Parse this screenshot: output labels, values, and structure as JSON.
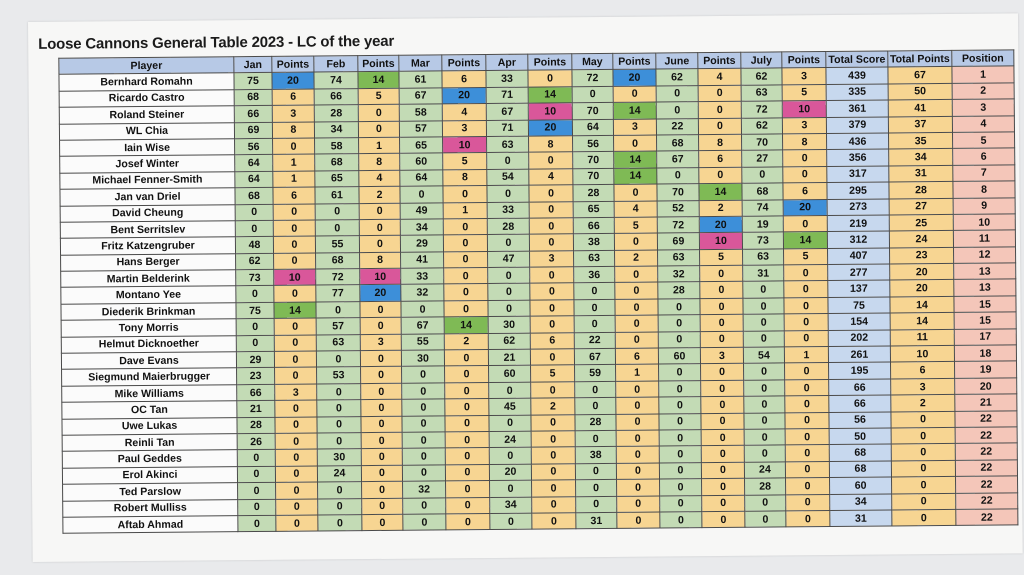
{
  "title": "Loose Cannons General Table 2023 - LC of the year",
  "headers": [
    "Player",
    "Jan",
    "Points",
    "Feb",
    "Points",
    "Mar",
    "Points",
    "Apr",
    "Points",
    "May",
    "Points",
    "June",
    "Points",
    "July",
    "Points",
    "Total Score",
    "Total Points",
    "Position"
  ],
  "colors": {
    "blue": "#3d8fd9",
    "pink": "#d9579a",
    "green": "#7fba55",
    "score": "#c3dbb5",
    "points": "#f7d592",
    "total": "#c7d8ee",
    "position": "#f4c6b9",
    "header": "#b7c9e6"
  },
  "rows": [
    [
      "Bernhard Romahn",
      "75",
      "20",
      "74",
      "14",
      "61",
      "6",
      "33",
      "0",
      "72",
      "20",
      "62",
      "4",
      "62",
      "3",
      "439",
      "67",
      "1"
    ],
    [
      "Ricardo Castro",
      "68",
      "6",
      "66",
      "5",
      "67",
      "20",
      "71",
      "14",
      "0",
      "0",
      "0",
      "0",
      "63",
      "5",
      "335",
      "50",
      "2"
    ],
    [
      "Roland Steiner",
      "66",
      "3",
      "28",
      "0",
      "58",
      "4",
      "67",
      "10",
      "70",
      "14",
      "0",
      "0",
      "72",
      "10",
      "361",
      "41",
      "3"
    ],
    [
      "WL Chia",
      "69",
      "8",
      "34",
      "0",
      "57",
      "3",
      "71",
      "20",
      "64",
      "3",
      "22",
      "0",
      "62",
      "3",
      "379",
      "37",
      "4"
    ],
    [
      "Iain Wise",
      "56",
      "0",
      "58",
      "1",
      "65",
      "10",
      "63",
      "8",
      "56",
      "0",
      "68",
      "8",
      "70",
      "8",
      "436",
      "35",
      "5"
    ],
    [
      "Josef Winter",
      "64",
      "1",
      "68",
      "8",
      "60",
      "5",
      "0",
      "0",
      "70",
      "14",
      "67",
      "6",
      "27",
      "0",
      "356",
      "34",
      "6"
    ],
    [
      "Michael Fenner-Smith",
      "64",
      "1",
      "65",
      "4",
      "64",
      "8",
      "54",
      "4",
      "70",
      "14",
      "0",
      "0",
      "0",
      "0",
      "317",
      "31",
      "7"
    ],
    [
      "Jan van Driel",
      "68",
      "6",
      "61",
      "2",
      "0",
      "0",
      "0",
      "0",
      "28",
      "0",
      "70",
      "14",
      "68",
      "6",
      "295",
      "28",
      "8"
    ],
    [
      "David Cheung",
      "0",
      "0",
      "0",
      "0",
      "49",
      "1",
      "33",
      "0",
      "65",
      "4",
      "52",
      "2",
      "74",
      "20",
      "273",
      "27",
      "9"
    ],
    [
      "Bent Serritslev",
      "0",
      "0",
      "0",
      "0",
      "34",
      "0",
      "28",
      "0",
      "66",
      "5",
      "72",
      "20",
      "19",
      "0",
      "219",
      "25",
      "10"
    ],
    [
      "Fritz Katzengruber",
      "48",
      "0",
      "55",
      "0",
      "29",
      "0",
      "0",
      "0",
      "38",
      "0",
      "69",
      "10",
      "73",
      "14",
      "312",
      "24",
      "11"
    ],
    [
      "Hans Berger",
      "62",
      "0",
      "68",
      "8",
      "41",
      "0",
      "47",
      "3",
      "63",
      "2",
      "63",
      "5",
      "63",
      "5",
      "407",
      "23",
      "12"
    ],
    [
      "Martin Belderink",
      "73",
      "10",
      "72",
      "10",
      "33",
      "0",
      "0",
      "0",
      "36",
      "0",
      "32",
      "0",
      "31",
      "0",
      "277",
      "20",
      "13"
    ],
    [
      "Montano Yee",
      "0",
      "0",
      "77",
      "20",
      "32",
      "0",
      "0",
      "0",
      "0",
      "0",
      "28",
      "0",
      "0",
      "0",
      "137",
      "20",
      "13"
    ],
    [
      "Diederik Brinkman",
      "75",
      "14",
      "0",
      "0",
      "0",
      "0",
      "0",
      "0",
      "0",
      "0",
      "0",
      "0",
      "0",
      "0",
      "75",
      "14",
      "15"
    ],
    [
      "Tony Morris",
      "0",
      "0",
      "57",
      "0",
      "67",
      "14",
      "30",
      "0",
      "0",
      "0",
      "0",
      "0",
      "0",
      "0",
      "154",
      "14",
      "15"
    ],
    [
      "Helmut Dicknoether",
      "0",
      "0",
      "63",
      "3",
      "55",
      "2",
      "62",
      "6",
      "22",
      "0",
      "0",
      "0",
      "0",
      "0",
      "202",
      "11",
      "17"
    ],
    [
      "Dave Evans",
      "29",
      "0",
      "0",
      "0",
      "30",
      "0",
      "21",
      "0",
      "67",
      "6",
      "60",
      "3",
      "54",
      "1",
      "261",
      "10",
      "18"
    ],
    [
      "Siegmund Maierbrugger",
      "23",
      "0",
      "53",
      "0",
      "0",
      "0",
      "60",
      "5",
      "59",
      "1",
      "0",
      "0",
      "0",
      "0",
      "195",
      "6",
      "19"
    ],
    [
      "Mike Williams",
      "66",
      "3",
      "0",
      "0",
      "0",
      "0",
      "0",
      "0",
      "0",
      "0",
      "0",
      "0",
      "0",
      "0",
      "66",
      "3",
      "20"
    ],
    [
      "OC Tan",
      "21",
      "0",
      "0",
      "0",
      "0",
      "0",
      "45",
      "2",
      "0",
      "0",
      "0",
      "0",
      "0",
      "0",
      "66",
      "2",
      "21"
    ],
    [
      "Uwe Lukas",
      "28",
      "0",
      "0",
      "0",
      "0",
      "0",
      "0",
      "0",
      "28",
      "0",
      "0",
      "0",
      "0",
      "0",
      "56",
      "0",
      "22"
    ],
    [
      "Reinli Tan",
      "26",
      "0",
      "0",
      "0",
      "0",
      "0",
      "24",
      "0",
      "0",
      "0",
      "0",
      "0",
      "0",
      "0",
      "50",
      "0",
      "22"
    ],
    [
      "Paul Geddes",
      "0",
      "0",
      "30",
      "0",
      "0",
      "0",
      "0",
      "0",
      "38",
      "0",
      "0",
      "0",
      "0",
      "0",
      "68",
      "0",
      "22"
    ],
    [
      "Erol Akinci",
      "0",
      "0",
      "24",
      "0",
      "0",
      "0",
      "20",
      "0",
      "0",
      "0",
      "0",
      "0",
      "24",
      "0",
      "68",
      "0",
      "22"
    ],
    [
      "Ted Parslow",
      "0",
      "0",
      "0",
      "0",
      "32",
      "0",
      "0",
      "0",
      "0",
      "0",
      "0",
      "0",
      "28",
      "0",
      "60",
      "0",
      "22"
    ],
    [
      "Robert Mulliss",
      "0",
      "0",
      "0",
      "0",
      "0",
      "0",
      "34",
      "0",
      "0",
      "0",
      "0",
      "0",
      "0",
      "0",
      "34",
      "0",
      "22"
    ],
    [
      "Aftab Ahmad",
      "0",
      "0",
      "0",
      "0",
      "0",
      "0",
      "0",
      "0",
      "31",
      "0",
      "0",
      "0",
      "0",
      "0",
      "31",
      "0",
      "22"
    ]
  ],
  "highlights": {
    "blue": [
      [
        0,
        2
      ],
      [
        0,
        10
      ],
      [
        1,
        6
      ],
      [
        3,
        8
      ],
      [
        9,
        12
      ],
      [
        13,
        4
      ],
      [
        8,
        14
      ]
    ],
    "pink": [
      [
        2,
        8
      ],
      [
        2,
        14
      ],
      [
        4,
        6
      ],
      [
        10,
        12
      ],
      [
        12,
        2
      ],
      [
        12,
        4
      ]
    ],
    "green": [
      [
        0,
        4
      ],
      [
        1,
        8
      ],
      [
        2,
        10
      ],
      [
        5,
        10
      ],
      [
        6,
        10
      ],
      [
        7,
        12
      ],
      [
        10,
        14
      ],
      [
        14,
        2
      ],
      [
        15,
        6
      ]
    ]
  }
}
